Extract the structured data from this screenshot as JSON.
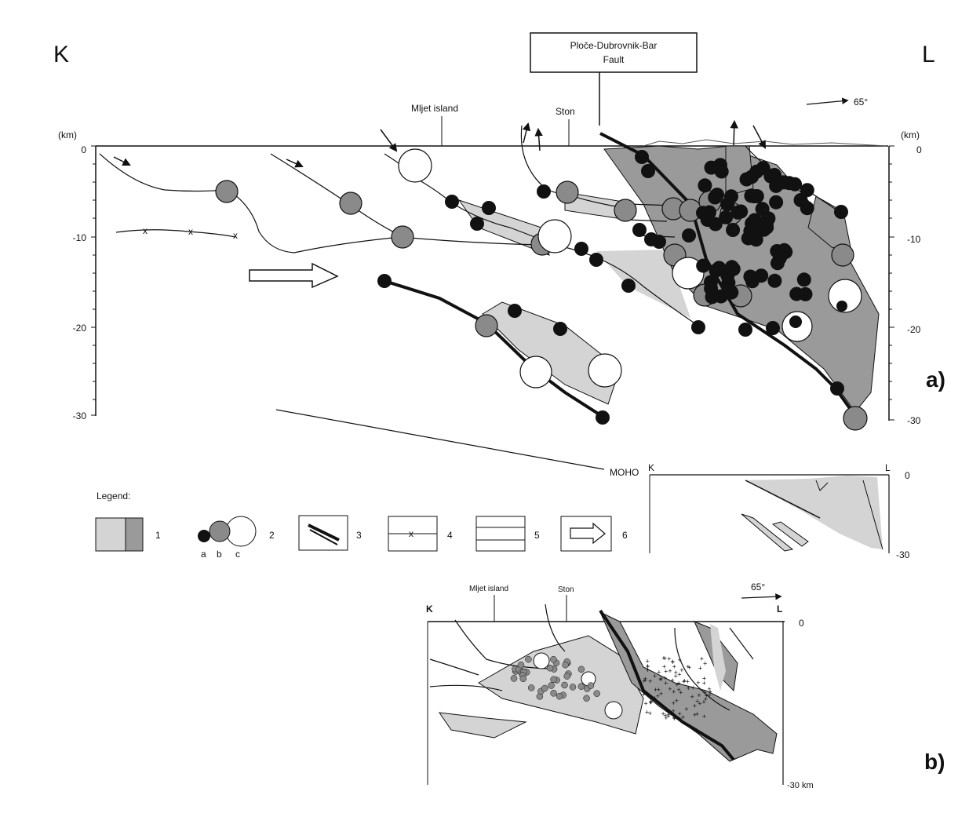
{
  "panel_a": {
    "corner_left": "K",
    "corner_right": "L",
    "fault_label_line1": "Ploče-Dubrovnik-Bar",
    "fault_label_line2": "Fault",
    "mljet_label": "Mljet island",
    "ston_label": "Ston",
    "azimuth_label": "65°",
    "unit_left": "(km)",
    "unit_right": "(km)",
    "y_ticks_left": [
      "0",
      "-10",
      "-20",
      "-30"
    ],
    "y_ticks_right": [
      "0",
      "-10",
      "-20",
      "-30"
    ],
    "moho_label": "MOHO",
    "panel_label": "a)"
  },
  "legend": {
    "title": "Legend:",
    "items": [
      "1",
      "2",
      "3",
      "4",
      "5",
      "6"
    ],
    "sub_a": "a",
    "sub_b": "b",
    "sub_c": "c"
  },
  "inset": {
    "corner_left": "K",
    "corner_right": "L",
    "tick_top": "0",
    "tick_bottom": "-30"
  },
  "panel_b": {
    "mljet_label": "Mljet island",
    "ston_label": "Ston",
    "azimuth_label": "65°",
    "corner_left": "K",
    "corner_right": "L",
    "tick_top": "0",
    "tick_bottom": "-30 km",
    "panel_label": "b)"
  },
  "colors": {
    "light_fill": "#d4d4d4",
    "dark_fill": "#9a9a9a",
    "medium_circle": "#8a8a8a",
    "black": "#111111"
  }
}
